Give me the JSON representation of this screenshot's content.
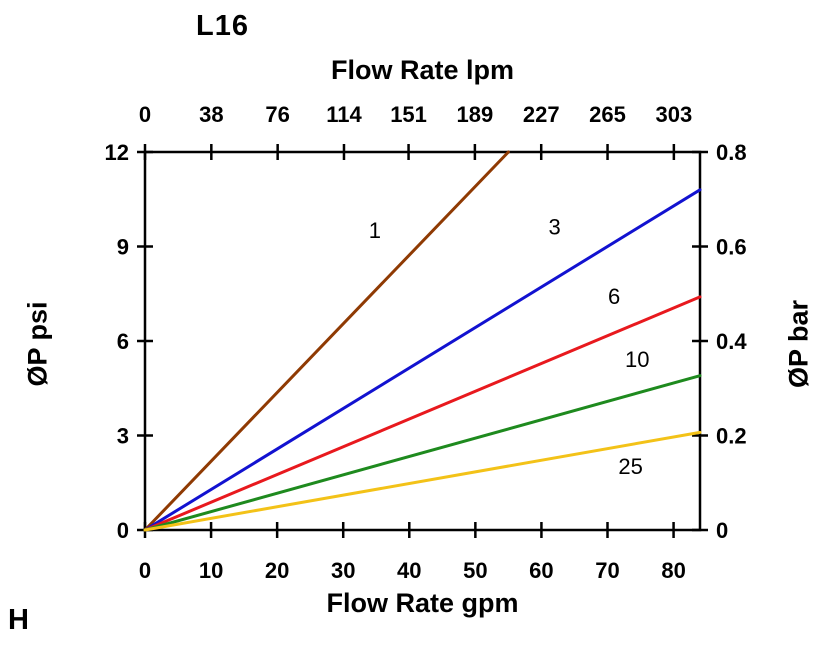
{
  "page": {
    "corner_label": "H"
  },
  "chart_data": {
    "type": "line",
    "title": "L16",
    "x_axis_bottom": {
      "label": "Flow Rate gpm",
      "ticks": [
        0,
        10,
        20,
        30,
        40,
        50,
        60,
        70,
        80
      ],
      "range": [
        0,
        84
      ]
    },
    "x_axis_top": {
      "label": "Flow Rate lpm",
      "ticks": [
        0,
        38,
        76,
        114,
        151,
        189,
        227,
        265,
        303
      ]
    },
    "y_axis_left": {
      "label": "ØP psi",
      "ticks": [
        0,
        3,
        6,
        9,
        12
      ],
      "range": [
        0,
        12
      ]
    },
    "y_axis_right": {
      "label": "ØP bar",
      "ticks": [
        0,
        0.2,
        0.4,
        0.6,
        0.8
      ],
      "range": [
        0,
        0.8
      ]
    },
    "grid": false,
    "legend_position": "labels-on-lines",
    "series": [
      {
        "name": "1",
        "color": "#8f3a03",
        "points": [
          [
            0,
            0
          ],
          [
            55,
            12.0
          ]
        ],
        "label_at": [
          34.8,
          9.5
        ]
      },
      {
        "name": "3",
        "color": "#1212d0",
        "points": [
          [
            0,
            0
          ],
          [
            84,
            10.8
          ]
        ],
        "label_at": [
          62.0,
          9.6
        ]
      },
      {
        "name": "6",
        "color": "#e8191e",
        "points": [
          [
            0,
            0
          ],
          [
            84,
            7.4
          ]
        ],
        "label_at": [
          71.0,
          7.4
        ]
      },
      {
        "name": "10",
        "color": "#1e8a1e",
        "points": [
          [
            0,
            0
          ],
          [
            84,
            4.9
          ]
        ],
        "label_at": [
          74.5,
          5.4
        ]
      },
      {
        "name": "25",
        "color": "#f3c218",
        "points": [
          [
            0,
            0
          ],
          [
            84,
            3.1
          ]
        ],
        "label_at": [
          73.5,
          2.0
        ]
      }
    ]
  }
}
